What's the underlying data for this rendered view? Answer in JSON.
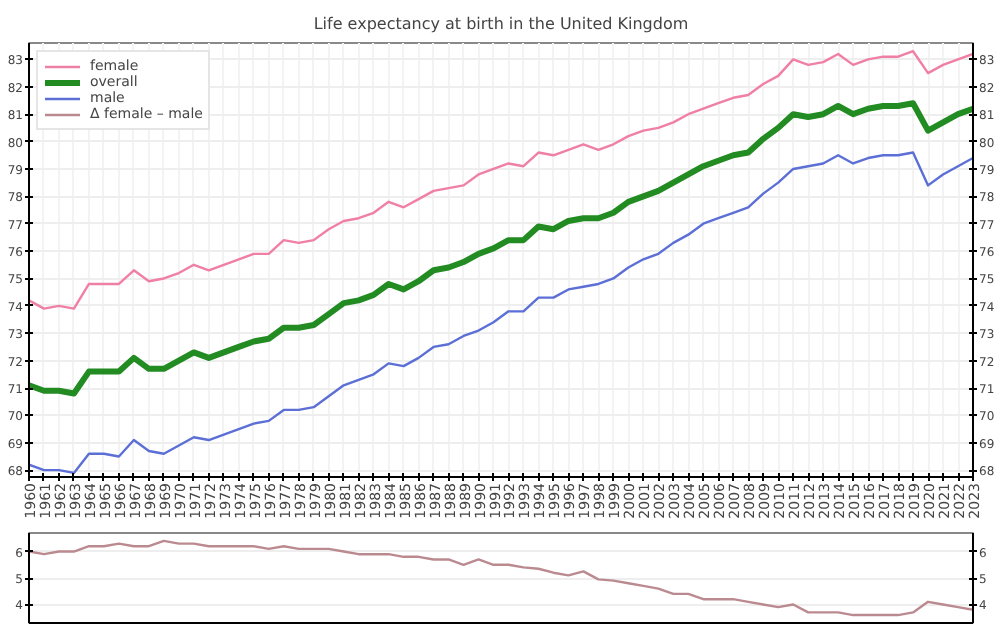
{
  "chart_data": [
    {
      "type": "line",
      "title": "Life expectancy at birth in the United Kingdom",
      "x": [
        1960,
        1961,
        1962,
        1963,
        1964,
        1965,
        1966,
        1967,
        1968,
        1969,
        1970,
        1971,
        1972,
        1973,
        1974,
        1975,
        1976,
        1977,
        1978,
        1979,
        1980,
        1981,
        1982,
        1983,
        1984,
        1985,
        1986,
        1987,
        1988,
        1989,
        1990,
        1991,
        1992,
        1993,
        1994,
        1995,
        1996,
        1997,
        1998,
        1999,
        2000,
        2001,
        2002,
        2003,
        2004,
        2005,
        2006,
        2007,
        2008,
        2009,
        2010,
        2011,
        2012,
        2013,
        2014,
        2015,
        2016,
        2017,
        2018,
        2019,
        2020,
        2021,
        2022,
        2023
      ],
      "xlim": [
        1960,
        2023
      ],
      "xticks": [
        1960,
        1961,
        1962,
        1963,
        1964,
        1965,
        1966,
        1967,
        1968,
        1969,
        1970,
        1971,
        1972,
        1973,
        1974,
        1975,
        1976,
        1977,
        1978,
        1979,
        1980,
        1981,
        1982,
        1983,
        1984,
        1985,
        1986,
        1987,
        1988,
        1989,
        1990,
        1991,
        1992,
        1993,
        1994,
        1995,
        1996,
        1997,
        1998,
        1999,
        2000,
        2001,
        2002,
        2003,
        2004,
        2005,
        2006,
        2007,
        2008,
        2009,
        2010,
        2011,
        2012,
        2013,
        2014,
        2015,
        2016,
        2017,
        2018,
        2019,
        2020,
        2021,
        2022,
        2023
      ],
      "ylim": [
        67.75,
        83.6
      ],
      "yticks": [
        68,
        69,
        70,
        71,
        72,
        73,
        74,
        75,
        76,
        77,
        78,
        79,
        80,
        81,
        82,
        83
      ],
      "y2lim": [
        67.75,
        83.6
      ],
      "y2ticks": [
        68,
        69,
        70,
        71,
        72,
        73,
        74,
        75,
        76,
        77,
        78,
        79,
        80,
        81,
        82,
        83
      ],
      "grid": true,
      "legend": "top left",
      "marker": "none",
      "line_style": "solid",
      "series": [
        {
          "name": "female",
          "color": "#f07fa6",
          "values": [
            74.2,
            73.9,
            74.0,
            73.9,
            74.8,
            74.8,
            74.8,
            75.3,
            74.9,
            75.0,
            75.2,
            75.5,
            75.3,
            75.5,
            75.7,
            75.9,
            75.9,
            76.4,
            76.3,
            76.4,
            76.8,
            77.1,
            77.2,
            77.4,
            77.8,
            77.6,
            77.9,
            78.2,
            78.3,
            78.4,
            78.8,
            79.0,
            79.2,
            79.1,
            79.6,
            79.5,
            79.7,
            79.9,
            79.7,
            79.9,
            80.2,
            80.4,
            80.5,
            80.7,
            81.0,
            81.2,
            81.4,
            81.6,
            81.7,
            82.1,
            82.4,
            83.0,
            82.8,
            82.9,
            83.2,
            82.8,
            83.0,
            83.1,
            83.1,
            83.3,
            82.5,
            82.8,
            83.0,
            83.2
          ]
        },
        {
          "name": "overall",
          "color": "#228b22",
          "values": [
            71.1,
            70.9,
            70.9,
            70.8,
            71.6,
            71.6,
            71.6,
            72.1,
            71.7,
            71.7,
            72.0,
            72.3,
            72.1,
            72.3,
            72.5,
            72.7,
            72.8,
            73.2,
            73.2,
            73.3,
            73.7,
            74.1,
            74.2,
            74.4,
            74.8,
            74.6,
            74.9,
            75.3,
            75.4,
            75.6,
            75.9,
            76.1,
            76.4,
            76.4,
            76.9,
            76.8,
            77.1,
            77.2,
            77.2,
            77.4,
            77.8,
            78.0,
            78.2,
            78.5,
            78.8,
            79.1,
            79.3,
            79.5,
            79.6,
            80.1,
            80.5,
            81.0,
            80.9,
            81.0,
            81.3,
            81.0,
            81.2,
            81.3,
            81.3,
            81.4,
            80.4,
            80.7,
            81.0,
            81.2
          ]
        },
        {
          "name": "male",
          "color": "#5b6fd6",
          "values": [
            68.2,
            68.0,
            68.0,
            67.9,
            68.6,
            68.6,
            68.5,
            69.1,
            68.7,
            68.6,
            68.9,
            69.2,
            69.1,
            69.3,
            69.5,
            69.7,
            69.8,
            70.2,
            70.2,
            70.3,
            70.7,
            71.1,
            71.3,
            71.5,
            71.9,
            71.8,
            72.1,
            72.5,
            72.6,
            72.9,
            73.1,
            73.4,
            73.8,
            73.8,
            74.3,
            74.3,
            74.6,
            74.7,
            74.8,
            75.0,
            75.4,
            75.7,
            75.9,
            76.3,
            76.6,
            77.0,
            77.2,
            77.4,
            77.6,
            78.1,
            78.5,
            79.0,
            79.1,
            79.2,
            79.5,
            79.2,
            79.4,
            79.5,
            79.5,
            79.6,
            78.4,
            78.8,
            79.1,
            79.4
          ]
        }
      ]
    },
    {
      "type": "line",
      "x": [
        1960,
        1961,
        1962,
        1963,
        1964,
        1965,
        1966,
        1967,
        1968,
        1969,
        1970,
        1971,
        1972,
        1973,
        1974,
        1975,
        1976,
        1977,
        1978,
        1979,
        1980,
        1981,
        1982,
        1983,
        1984,
        1985,
        1986,
        1987,
        1988,
        1989,
        1990,
        1991,
        1992,
        1993,
        1994,
        1995,
        1996,
        1997,
        1998,
        1999,
        2000,
        2001,
        2002,
        2003,
        2004,
        2005,
        2006,
        2007,
        2008,
        2009,
        2010,
        2011,
        2012,
        2013,
        2014,
        2015,
        2016,
        2017,
        2018,
        2019,
        2020,
        2021,
        2022,
        2023
      ],
      "xlim": [
        1960,
        2023
      ],
      "ylim": [
        3.3,
        6.7
      ],
      "yticks": [
        4,
        5,
        6
      ],
      "y2lim": [
        3.3,
        6.7
      ],
      "y2ticks": [
        4,
        5,
        6
      ],
      "grid": true,
      "tick_labels": "y",
      "marker": "none",
      "line_style": "solid",
      "series": [
        {
          "name": "Δ female – male",
          "color": "#bb8a90",
          "values": [
            6.0,
            5.9,
            6.0,
            6.0,
            6.2,
            6.2,
            6.3,
            6.2,
            6.2,
            6.4,
            6.3,
            6.3,
            6.2,
            6.2,
            6.2,
            6.2,
            6.1,
            6.2,
            6.1,
            6.1,
            6.1,
            6.0,
            5.9,
            5.9,
            5.9,
            5.8,
            5.8,
            5.7,
            5.7,
            5.5,
            5.7,
            5.5,
            5.5,
            5.4,
            5.35,
            5.2,
            5.1,
            5.25,
            4.95,
            4.9,
            4.8,
            4.7,
            4.6,
            4.4,
            4.4,
            4.2,
            4.2,
            4.2,
            4.1,
            4.0,
            3.9,
            4.0,
            3.7,
            3.7,
            3.7,
            3.6,
            3.6,
            3.6,
            3.6,
            3.7,
            4.1,
            4.0,
            3.9,
            3.8
          ]
        }
      ]
    }
  ]
}
